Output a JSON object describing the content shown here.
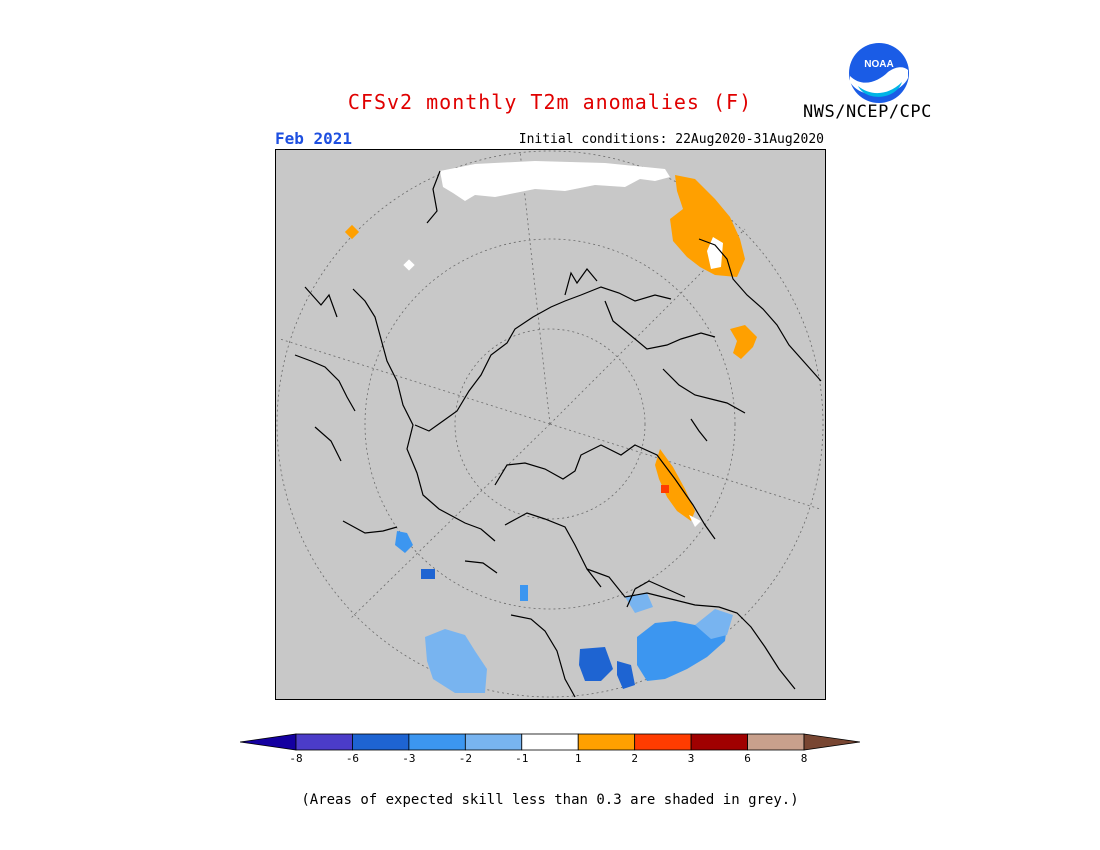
{
  "header": {
    "title": "CFSv2 monthly T2m anomalies (F)",
    "agency": "NWS/NCEP/CPC",
    "logo_text": "NOAA",
    "period": "Feb 2021",
    "initial_conditions": "Initial conditions: 22Aug2020-31Aug2020"
  },
  "colors": {
    "title": "#e00000",
    "period": "#1d4fe0",
    "grey_mask": "#c8c8c8",
    "anomaly_orange": "#ffa000",
    "anomaly_red": "#ff3c00",
    "cool_light": "#78b4f0",
    "cool_mid": "#3c96f0",
    "cool_dark": "#1e64d2"
  },
  "colorbar": {
    "labels": [
      "-8",
      "-6",
      "-3",
      "-2",
      "-1",
      "1",
      "2",
      "3",
      "6",
      "8"
    ],
    "colors": [
      "#1400a0",
      "#4b3cc8",
      "#1e64d2",
      "#3c96f0",
      "#78b4f0",
      "#ffffff",
      "#ffa000",
      "#ff3c00",
      "#a00000",
      "#c8a08c",
      "#784632"
    ]
  },
  "footnote": "(Areas of expected skill less than 0.3 are shaded in grey.)"
}
